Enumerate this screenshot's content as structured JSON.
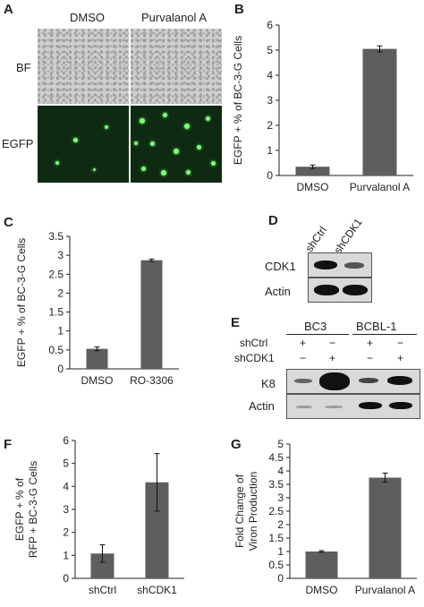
{
  "panel_letters": {
    "a": "A",
    "b": "B",
    "c": "C",
    "d": "D",
    "e": "E",
    "f": "F",
    "g": "G"
  },
  "panel_a": {
    "col_labels": [
      "DMSO",
      "Purvalanol A"
    ],
    "row_labels": [
      "BF",
      "EGFP"
    ]
  },
  "panel_d": {
    "lanes": [
      "shCtrl",
      "shCDK1"
    ],
    "rows": [
      "CDK1",
      "Actin"
    ]
  },
  "panel_e": {
    "groups": [
      "BC3",
      "BCBL-1"
    ],
    "row_labels": [
      "shCtrl",
      "shCDK1"
    ],
    "shCtrl_signs": [
      "+",
      "−",
      "+",
      "−"
    ],
    "shCDK1_signs": [
      "−",
      "+",
      "−",
      "+"
    ],
    "blots": [
      "K8",
      "Actin"
    ]
  },
  "colors": {
    "bar": "#5e5e5e",
    "axis": "#222222"
  },
  "chart_data": [
    {
      "id": "B",
      "type": "bar",
      "categories": [
        "DMSO",
        "Purvalanol A"
      ],
      "values": [
        0.35,
        5.05
      ],
      "errors": [
        0.07,
        0.12
      ],
      "ylabel": "EGFP + % of BC-3-G Cells",
      "ylim": [
        0,
        6
      ],
      "yticks": [
        "0",
        "1",
        "2",
        "3",
        "4",
        "5",
        "6"
      ]
    },
    {
      "id": "C",
      "type": "bar",
      "categories": [
        "DMSO",
        "RO-3306"
      ],
      "values": [
        0.53,
        2.87
      ],
      "errors": [
        0.05,
        0.03
      ],
      "ylabel": "EGFP + % of BC-3-G Cells",
      "ylim": [
        0,
        3.5
      ],
      "yticks": [
        "0",
        "0.5",
        "1",
        "1.5",
        "2",
        "2.5",
        "3",
        "3.5"
      ]
    },
    {
      "id": "F",
      "type": "bar",
      "categories": [
        "shCtrl",
        "shCDK1"
      ],
      "values": [
        1.08,
        4.18
      ],
      "errors": [
        0.38,
        1.25
      ],
      "ylabel": "EGFP + % of",
      "ylabel2": "RFP + BC-3-G Cells",
      "ylim": [
        0,
        6
      ],
      "yticks": [
        "0",
        "1",
        "2",
        "3",
        "4",
        "5",
        "6"
      ]
    },
    {
      "id": "G",
      "type": "bar",
      "categories": [
        "DMSO",
        "Purvalanol A"
      ],
      "values": [
        1.0,
        3.75
      ],
      "errors": [
        0.03,
        0.17
      ],
      "ylabel": "Fold Change of",
      "ylabel2": "Viron Production",
      "ylim": [
        0,
        5
      ],
      "yticks": [
        "0",
        "0.5",
        "1",
        "1.5",
        "2",
        "2.5",
        "3",
        "3.5",
        "4",
        "4.5",
        "5"
      ]
    }
  ]
}
